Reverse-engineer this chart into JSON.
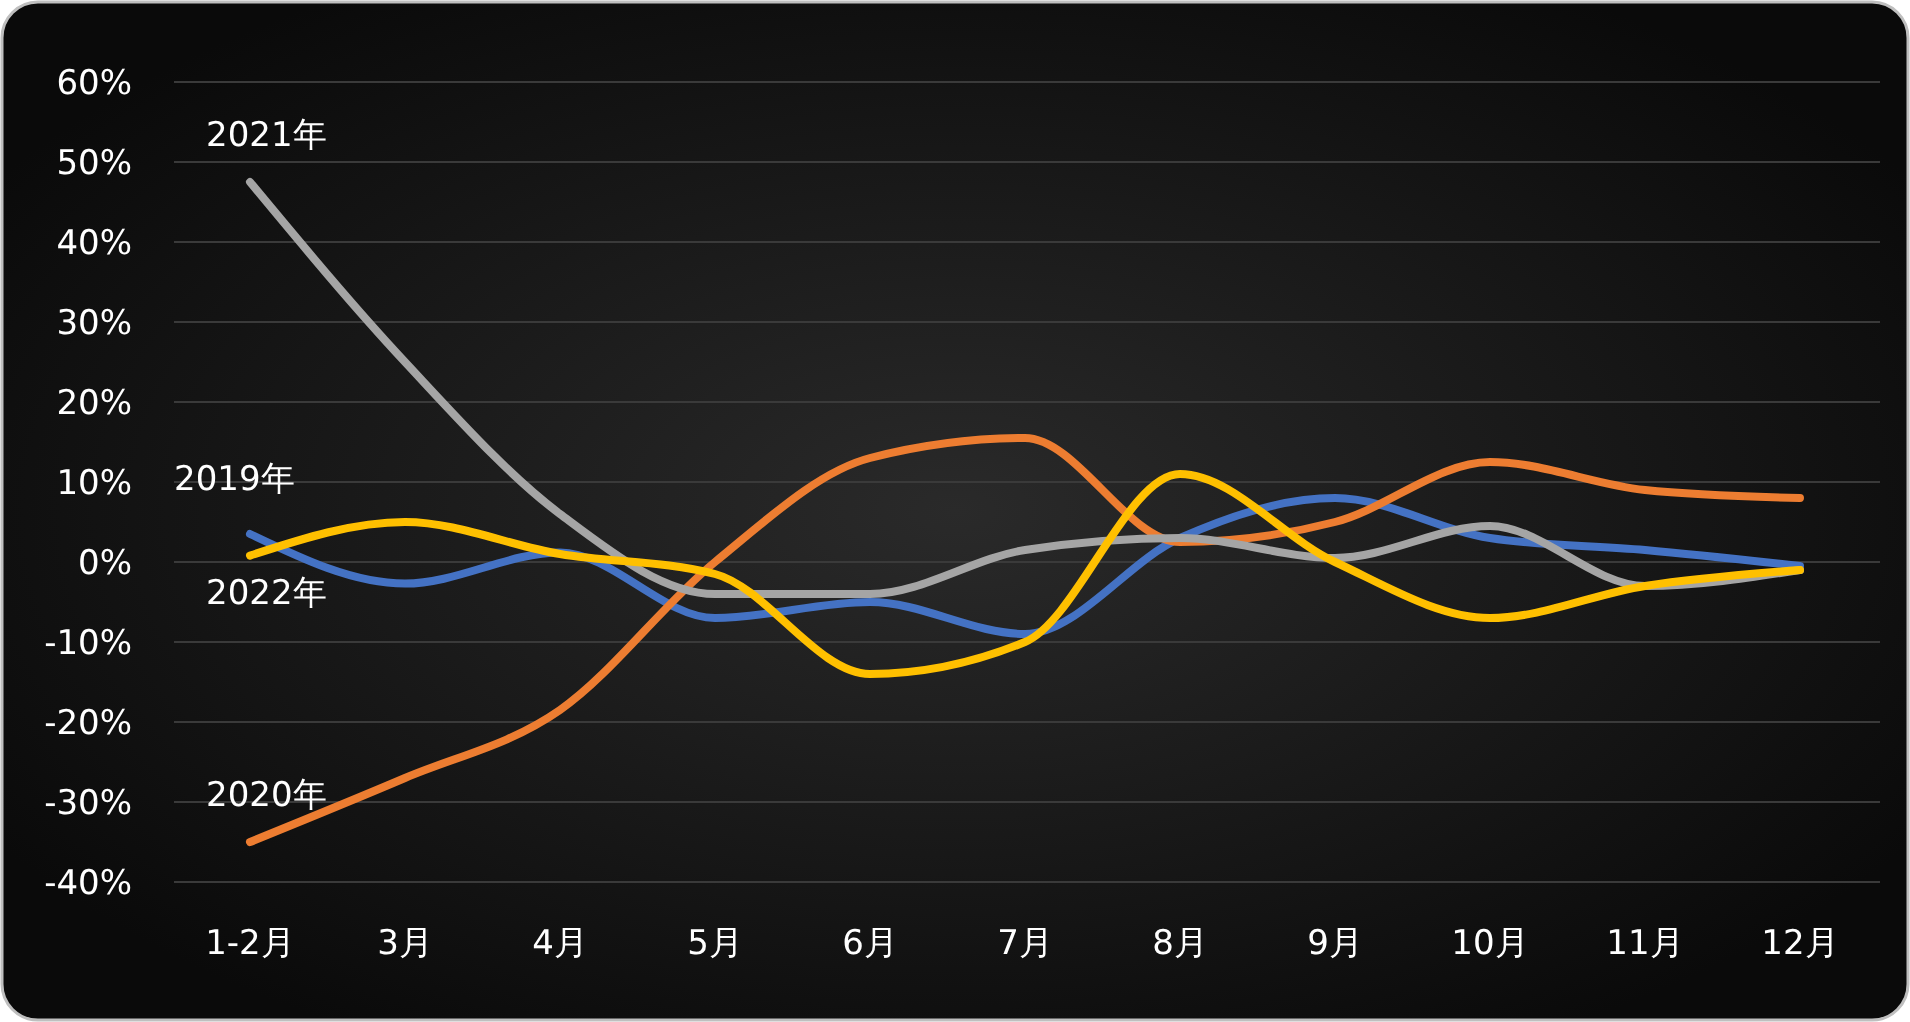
{
  "chart_data": {
    "type": "line",
    "categories": [
      "1-2月",
      "3月",
      "4月",
      "5月",
      "6月",
      "7月",
      "8月",
      "9月",
      "10月",
      "11月",
      "12月"
    ],
    "series": [
      {
        "name": "2019年",
        "color": "#4472c4",
        "values": [
          3.5,
          -2.7,
          1.2,
          -7,
          -5,
          -9,
          3,
          8,
          3,
          1.5,
          -0.5
        ]
      },
      {
        "name": "2020年",
        "color": "#ed7d31",
        "values": [
          -35,
          -27,
          -18.5,
          0,
          13,
          15.5,
          2.5,
          5,
          12.5,
          9,
          8
        ]
      },
      {
        "name": "2021年",
        "color": "#a5a5a5",
        "values": [
          47.5,
          25,
          6,
          -4,
          -4,
          1.5,
          3,
          0.5,
          4.5,
          -3,
          -1
        ]
      },
      {
        "name": "2022年",
        "color": "#ffc000",
        "values": [
          0.8,
          5,
          1,
          -1.5,
          -14,
          -10,
          11,
          0,
          -7,
          -3,
          -1
        ]
      }
    ],
    "ylim": [
      -40,
      60
    ],
    "yticks": [
      {
        "value": -40,
        "label": "-40%"
      },
      {
        "value": -30,
        "label": "-30%"
      },
      {
        "value": -20,
        "label": "-20%"
      },
      {
        "value": -10,
        "label": "-10%"
      },
      {
        "value": 0,
        "label": "0%"
      },
      {
        "value": 10,
        "label": "10%"
      },
      {
        "value": 20,
        "label": "20%"
      },
      {
        "value": 30,
        "label": "30%"
      },
      {
        "value": 40,
        "label": "40%"
      },
      {
        "value": 50,
        "label": "50%"
      },
      {
        "value": 60,
        "label": "60%"
      }
    ],
    "grid": "y",
    "marker": "none",
    "line_style": "solid"
  }
}
